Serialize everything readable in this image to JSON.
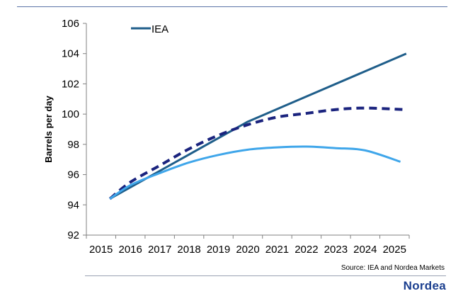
{
  "chart_data": {
    "type": "line",
    "title": "",
    "xlabel": "",
    "ylabel": "Barrels per day",
    "ylim": [
      92,
      106
    ],
    "yticks": [
      92,
      94,
      96,
      98,
      100,
      102,
      104,
      106
    ],
    "categories": [
      "2015",
      "2016",
      "2017",
      "2018",
      "2019",
      "2020",
      "2021",
      "2022",
      "2023",
      "2024",
      "2025"
    ],
    "legend": [
      {
        "label": "IEA",
        "color": "#1f5e8a",
        "style": "solid"
      }
    ],
    "legend_position": "top-left",
    "series": [
      {
        "name": "IEA",
        "color": "#1f5e8a",
        "style": "solid",
        "x": [
          2015.3,
          2020,
          2025.4
        ],
        "values": [
          94.4,
          99.5,
          104.0
        ]
      },
      {
        "name": "",
        "color": "#1a237e",
        "style": "dashed",
        "x": [
          2015.3,
          2016,
          2017,
          2018,
          2019,
          2020,
          2021,
          2022,
          2023,
          2024,
          2025.3
        ],
        "values": [
          94.4,
          95.5,
          96.6,
          97.7,
          98.6,
          99.3,
          99.8,
          100.05,
          100.3,
          100.4,
          100.3
        ]
      },
      {
        "name": "",
        "color": "#3fa6ea",
        "style": "solid",
        "x": [
          2015.3,
          2016,
          2017,
          2018,
          2019,
          2020,
          2021,
          2022,
          2023,
          2024,
          2025.2
        ],
        "values": [
          94.4,
          95.3,
          96.1,
          96.8,
          97.3,
          97.65,
          97.8,
          97.85,
          97.75,
          97.6,
          96.85
        ]
      }
    ]
  },
  "footer": {
    "source": "Source: IEA and Nordea Markets",
    "brand": "Nordea"
  }
}
